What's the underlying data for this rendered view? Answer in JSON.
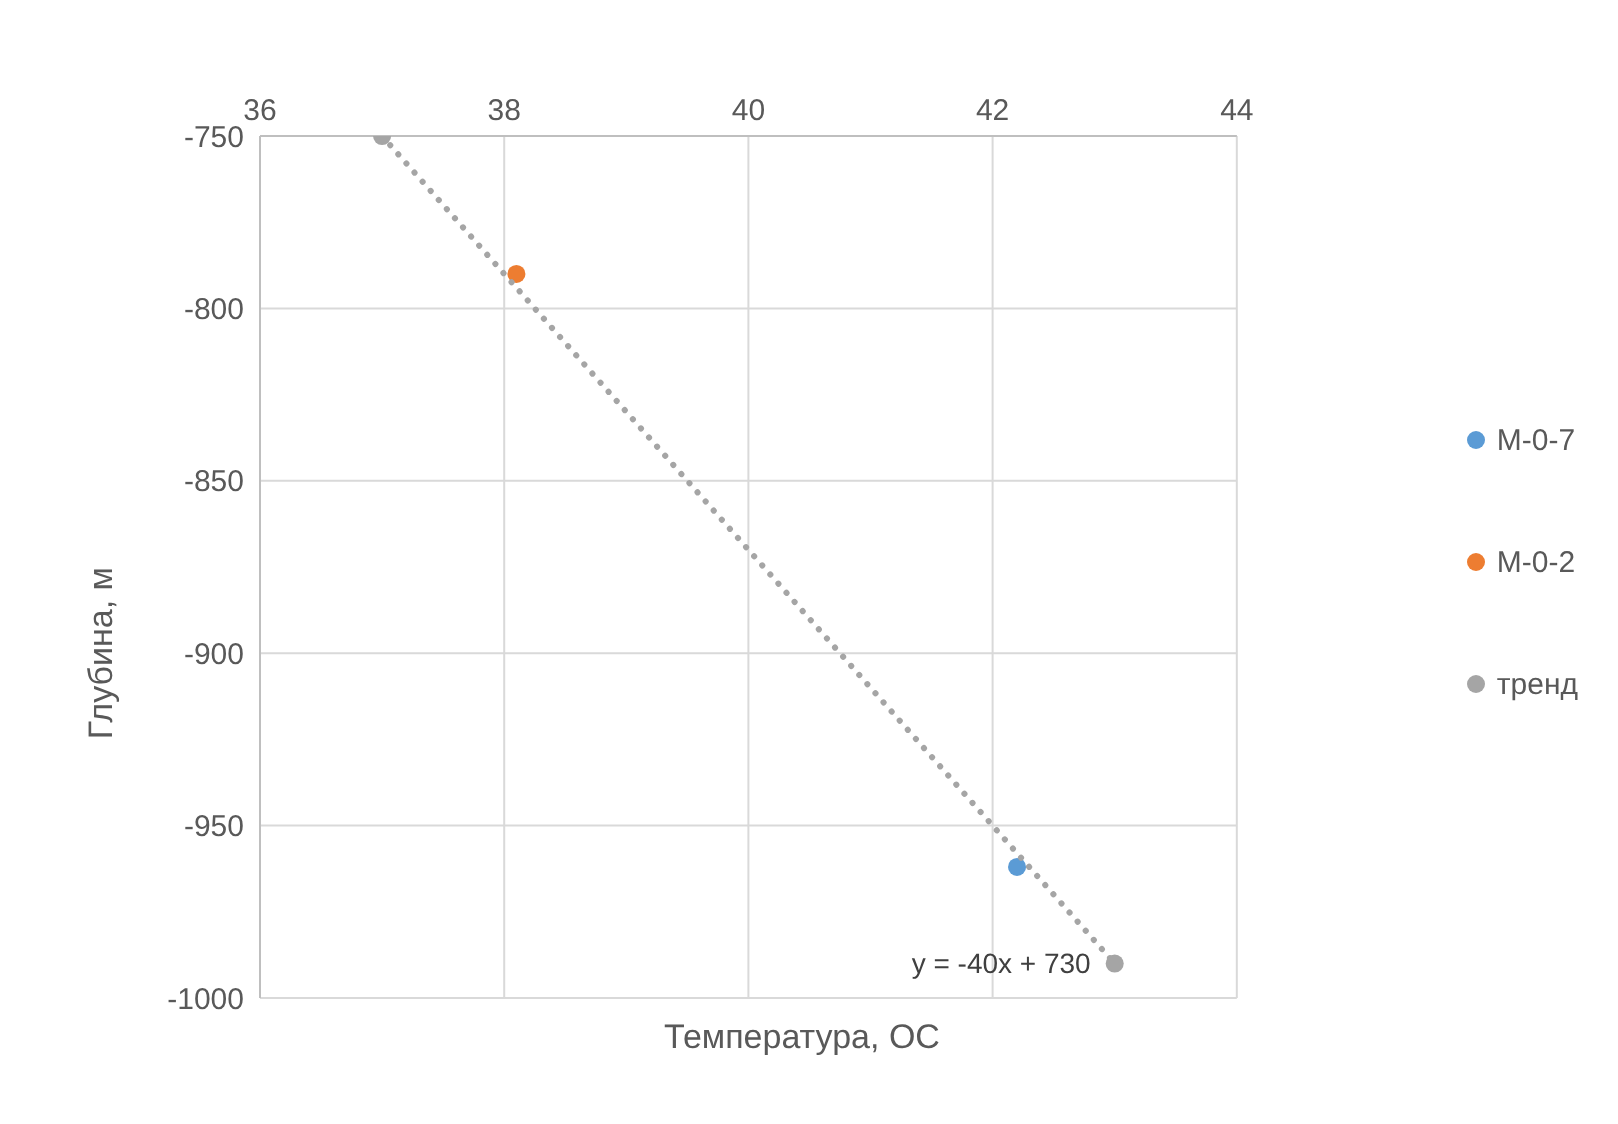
{
  "chart_data": {
    "type": "scatter",
    "xlabel": "Температура, ОС",
    "ylabel": "Глубина, м",
    "xlim": [
      36,
      44
    ],
    "xticks": [
      36,
      38,
      40,
      42,
      44
    ],
    "ylim": [
      -1000,
      -750
    ],
    "yticks": [
      -1000,
      -950,
      -900,
      -850,
      -800,
      -750
    ],
    "grid": true,
    "legend": "right",
    "marker": "circle",
    "series": [
      {
        "name": "М-0-7",
        "color": "#5b9bd5",
        "x": [
          42.2
        ],
        "values": [
          -962
        ]
      },
      {
        "name": "М-0-2",
        "color": "#ed7d31",
        "x": [
          38.1
        ],
        "values": [
          -790
        ]
      },
      {
        "name": "тренд",
        "type": "line",
        "line_style": "dotted",
        "color": "#a5a5a5",
        "x": [
          37,
          43
        ],
        "values": [
          -750,
          -990
        ]
      }
    ],
    "annotations": [
      {
        "text": "y = -40x + 730",
        "x": 43,
        "y": -990
      }
    ]
  }
}
